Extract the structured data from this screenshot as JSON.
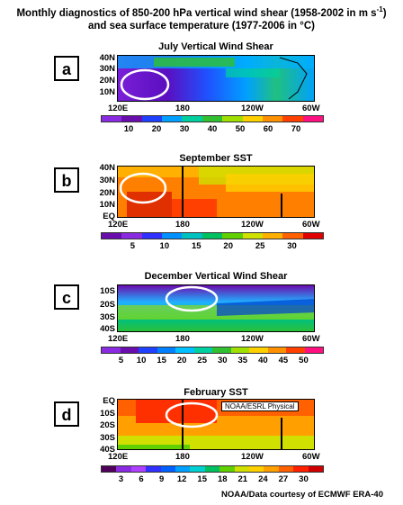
{
  "title_line1": "Monthly diagnostics of 850-200 hPa vertical wind shear (1958-2002 in m s",
  "title_sup": "-1",
  "title_line1_end": ")",
  "title_line2": "and sea surface temperature (1977-2006 in °C)",
  "panels": [
    {
      "letter": "a",
      "title": "July Vertical Wind Shear",
      "ylabels": [
        "40N",
        "30N",
        "20N",
        "10N"
      ],
      "xlabels": [
        "120E",
        "180",
        "120W",
        "60W"
      ],
      "cbar_ticks": [
        "10",
        "20",
        "30",
        "40",
        "50",
        "60",
        "70"
      ],
      "cbar_colors": [
        "#8a2be2",
        "#6a0dad",
        "#2040ff",
        "#00a0ff",
        "#00d0a0",
        "#30c030",
        "#a0e000",
        "#ffd000",
        "#ff9000",
        "#ff4000",
        "#ff1080"
      ]
    },
    {
      "letter": "b",
      "title": "September SST",
      "ylabels": [
        "40N",
        "30N",
        "20N",
        "10N",
        "EQ"
      ],
      "xlabels": [
        "120E",
        "180",
        "120W",
        "60W"
      ],
      "cbar_ticks": [
        "5",
        "10",
        "15",
        "20",
        "25",
        "30"
      ],
      "cbar_colors": [
        "#6a0dad",
        "#8a2be2",
        "#3030ff",
        "#0090ff",
        "#00c0c0",
        "#00c060",
        "#60d000",
        "#d0e000",
        "#ffb000",
        "#ff6000",
        "#e00000"
      ]
    },
    {
      "letter": "c",
      "title": "December Vertical Wind Shear",
      "ylabels": [
        "10S",
        "20S",
        "30S",
        "40S"
      ],
      "xlabels": [
        "120E",
        "180",
        "120W",
        "60W"
      ],
      "cbar_ticks": [
        "5",
        "10",
        "15",
        "20",
        "25",
        "30",
        "35",
        "40",
        "45",
        "50"
      ],
      "cbar_colors": [
        "#8a2be2",
        "#6a0dad",
        "#2040ff",
        "#0080ff",
        "#00c0ff",
        "#00d0a0",
        "#30c030",
        "#a0e000",
        "#ffd000",
        "#ff9000",
        "#ff4000",
        "#ff1080"
      ]
    },
    {
      "letter": "d",
      "title": "February SST",
      "ylabels": [
        "EQ",
        "10S",
        "20S",
        "30S",
        "40S"
      ],
      "xlabels": [
        "120E",
        "180",
        "120W",
        "60W"
      ],
      "cbar_ticks": [
        "3",
        "6",
        "9",
        "12",
        "15",
        "18",
        "21",
        "24",
        "27",
        "30"
      ],
      "cbar_colors": [
        "#50005a",
        "#8a2be2",
        "#b040ff",
        "#3030ff",
        "#0060ff",
        "#00a0ff",
        "#00d0d0",
        "#00c060",
        "#60d000",
        "#d0e000",
        "#ffd000",
        "#ffa000",
        "#ff6000",
        "#ff2000",
        "#d00000"
      ],
      "tag": "NOAA/ESRL Physical"
    }
  ],
  "credit": "NOAA/Data courtesy of ECMWF ERA-40"
}
